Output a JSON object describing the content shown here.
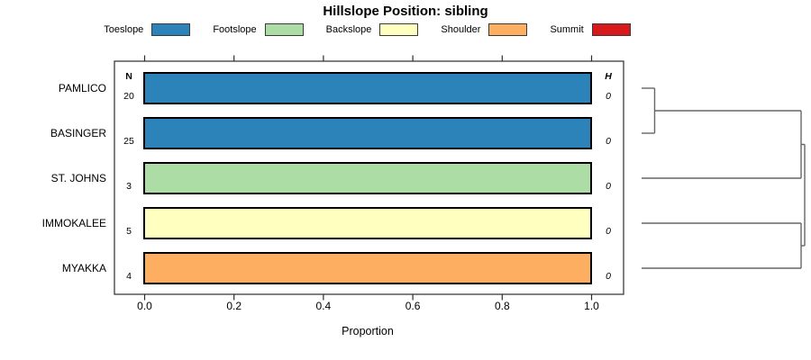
{
  "chart_data": {
    "type": "bar",
    "orientation": "horizontal",
    "title": "Hillslope Position: sibling",
    "xlabel": "Proportion",
    "xlim": [
      0.0,
      1.0
    ],
    "x_tick_labels": [
      "0.0",
      "0.2",
      "0.4",
      "0.6",
      "0.8",
      "1.0"
    ],
    "grid": false,
    "legend_position": "top",
    "legend": [
      {
        "label": "Toeslope",
        "color": "#2B83BA"
      },
      {
        "label": "Footslope",
        "color": "#ABDDA4"
      },
      {
        "label": "Backslope",
        "color": "#FFFFBF"
      },
      {
        "label": "Shoulder",
        "color": "#FDAE61"
      },
      {
        "label": "Summit",
        "color": "#D7191C"
      }
    ],
    "columns": {
      "n_header": "N",
      "h_header": "H"
    },
    "rows": [
      {
        "name": "PAMLICO",
        "n": 20,
        "h": 0,
        "category": "Toeslope",
        "proportion": 1.0,
        "color": "#2B83BA"
      },
      {
        "name": "BASINGER",
        "n": 25,
        "h": 0,
        "category": "Toeslope",
        "proportion": 1.0,
        "color": "#2B83BA"
      },
      {
        "name": "ST. JOHNS",
        "n": 3,
        "h": 0,
        "category": "Footslope",
        "proportion": 1.0,
        "color": "#ABDDA4"
      },
      {
        "name": "IMMOKALEE",
        "n": 5,
        "h": 0,
        "category": "Backslope",
        "proportion": 1.0,
        "color": "#FFFFBF"
      },
      {
        "name": "MYAKKA",
        "n": 4,
        "h": 0,
        "category": "Shoulder",
        "proportion": 1.0,
        "color": "#FDAE61"
      }
    ],
    "dendrogram": {
      "line_color": "#666666",
      "merges": [
        {
          "a": "L0",
          "b": "L1",
          "h": 0.08
        },
        {
          "a": "M0",
          "b": "L2",
          "h": 0.978
        },
        {
          "a": "L3",
          "b": "L4",
          "h": 0.978
        },
        {
          "a": "M1",
          "b": "M2",
          "h": 1.0
        }
      ]
    }
  }
}
